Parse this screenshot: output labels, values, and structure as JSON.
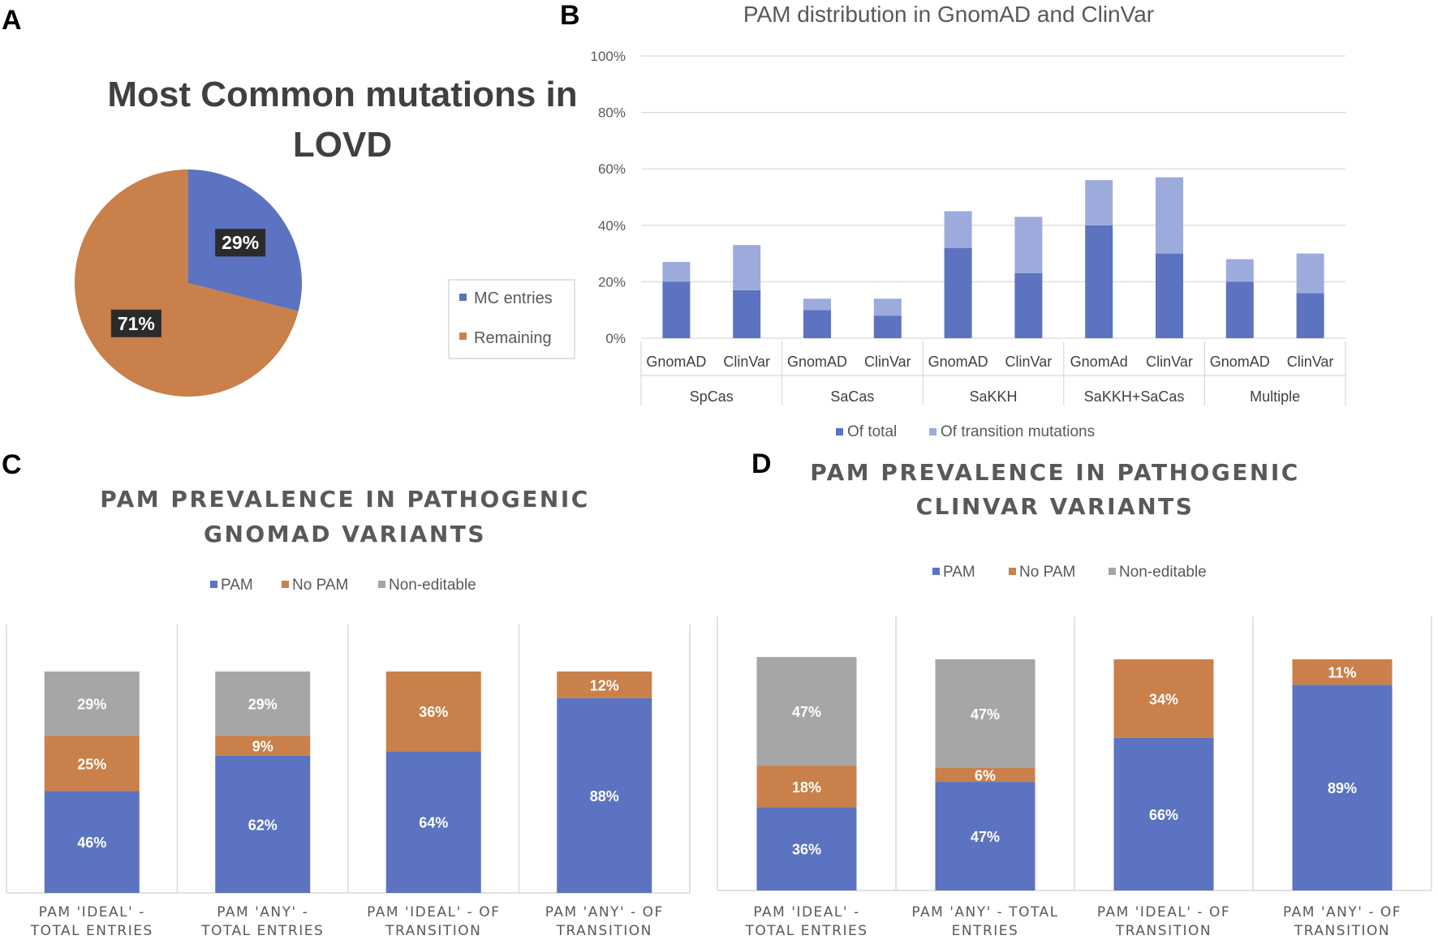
{
  "panels": [
    "A",
    "B",
    "C",
    "D"
  ],
  "colors": {
    "blue": "#5b73c0",
    "light_blue": "#9dabdc",
    "orange": "#c9804a",
    "gray": "#a6a6a6",
    "grid": "#d9d9d9",
    "label_bg": "#2b2b2b"
  },
  "chart_data": [
    {
      "panel": "A",
      "type": "pie",
      "title": "Most Common mutations in LOVD",
      "title_lines": [
        "Most Common mutations in",
        "LOVD"
      ],
      "slices": [
        {
          "name": "MC entries",
          "value": 29,
          "label": "29%",
          "color": "#5b73c0"
        },
        {
          "name": "Remaining",
          "value": 71,
          "label": "71%",
          "color": "#c9804a"
        }
      ],
      "legend": [
        "MC entries",
        "Remaining"
      ],
      "legend_position": "right"
    },
    {
      "panel": "B",
      "type": "bar",
      "stacked": true,
      "title": "PAM distribution in GnomAD and ClinVar",
      "groups": [
        "SpCas",
        "SaCas",
        "SaKKH",
        "SaKKH+SaCas",
        "Multiple"
      ],
      "categories": [
        "GnomAD",
        "ClinVar",
        "GnomAD",
        "ClinVar",
        "GnomAD",
        "ClinVar",
        "GnomAd",
        "ClinVar",
        "GnomAD",
        "ClinVar"
      ],
      "series": [
        {
          "name": "Of total",
          "values": [
            20,
            17,
            10,
            8,
            32,
            23,
            40,
            30,
            20,
            16
          ],
          "color": "#5b73c0"
        },
        {
          "name": "Of transition mutations",
          "values": [
            7,
            16,
            4,
            6,
            13,
            20,
            16,
            27,
            8,
            14
          ],
          "color": "#9dabdc"
        }
      ],
      "y_ticks": [
        "0%",
        "20%",
        "40%",
        "60%",
        "80%",
        "100%"
      ],
      "ylim": [
        0,
        100
      ],
      "grid": true,
      "legend_position": "bottom"
    },
    {
      "panel": "C",
      "type": "bar",
      "stacked": true,
      "title": "PAM PREVALENCE IN PATHOGENIC GNOMAD VARIANTS",
      "title_lines": [
        "PAM PREVALENCE IN PATHOGENIC",
        "GNOMAD VARIANTS"
      ],
      "categories": [
        [
          "PAM 'IDEAL' -",
          "TOTAL ENTRIES"
        ],
        [
          "PAM 'ANY' -",
          "TOTAL ENTRIES"
        ],
        [
          "PAM 'IDEAL' - OF",
          "TRANSITION"
        ],
        [
          "PAM 'ANY' - OF",
          "TRANSITION"
        ]
      ],
      "series": [
        {
          "name": "PAM",
          "values": [
            46,
            62,
            64,
            88
          ],
          "labels": [
            "46%",
            "62%",
            "64%",
            "88%"
          ],
          "color": "#5b73c0"
        },
        {
          "name": "No PAM",
          "values": [
            25,
            9,
            36,
            12
          ],
          "labels": [
            "25%",
            "9%",
            "36%",
            "12%"
          ],
          "color": "#c9804a"
        },
        {
          "name": "Non-editable",
          "values": [
            29,
            29,
            0,
            0
          ],
          "labels": [
            "29%",
            "29%",
            "",
            ""
          ],
          "color": "#a6a6a6"
        }
      ],
      "legend_position": "top"
    },
    {
      "panel": "D",
      "type": "bar",
      "stacked": true,
      "title": "PAM PREVALENCE IN PATHOGENIC CLINVAR VARIANTS",
      "title_lines": [
        "PAM PREVALENCE IN PATHOGENIC",
        "CLINVAR VARIANTS"
      ],
      "categories": [
        [
          "PAM 'IDEAL' -",
          "TOTAL ENTRIES"
        ],
        [
          "PAM 'ANY' - TOTAL",
          "ENTRIES"
        ],
        [
          "PAM 'IDEAL' - OF",
          "TRANSITION"
        ],
        [
          "PAM 'ANY' - OF",
          "TRANSITION"
        ]
      ],
      "series": [
        {
          "name": "PAM",
          "values": [
            36,
            47,
            66,
            89
          ],
          "labels": [
            "36%",
            "47%",
            "66%",
            "89%"
          ],
          "color": "#5b73c0"
        },
        {
          "name": "No PAM",
          "values": [
            18,
            6,
            34,
            11
          ],
          "labels": [
            "18%",
            "6%",
            "34%",
            "11%"
          ],
          "color": "#c9804a"
        },
        {
          "name": "Non-editable",
          "values": [
            47,
            47,
            0,
            0
          ],
          "labels": [
            "47%",
            "47%",
            "",
            ""
          ],
          "color": "#a6a6a6"
        }
      ],
      "legend_position": "top"
    }
  ]
}
